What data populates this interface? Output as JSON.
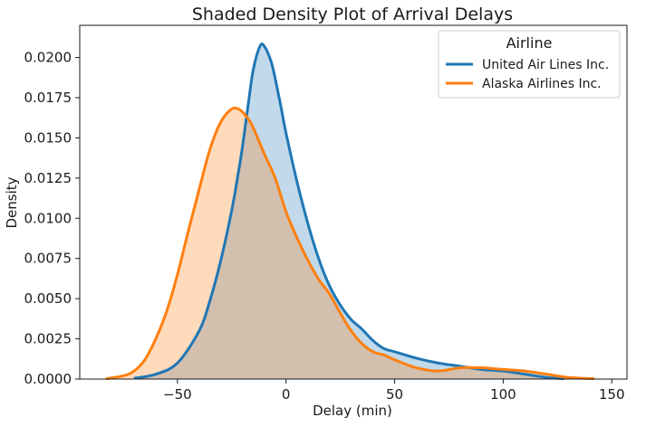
{
  "chart_data": {
    "type": "area",
    "title": "Shaded Density Plot of Arrival Delays",
    "xlabel": "Delay (min)",
    "ylabel": "Density",
    "xlim": [
      -95,
      157
    ],
    "ylim": [
      0,
      0.022
    ],
    "xticks": [
      -50,
      0,
      50,
      100,
      150
    ],
    "xtick_labels": [
      "−50",
      "0",
      "50",
      "100",
      "150"
    ],
    "yticks": [
      0,
      0.0025,
      0.005,
      0.0075,
      0.01,
      0.0125,
      0.015,
      0.0175,
      0.02
    ],
    "ytick_labels": [
      "0.0000",
      "0.0025",
      "0.0050",
      "0.0075",
      "0.0100",
      "0.0125",
      "0.0150",
      "0.0175",
      "0.0200"
    ],
    "grid": false,
    "legend": {
      "title": "Airline",
      "placement": "top-right"
    },
    "series": [
      {
        "name": "United Air Lines Inc.",
        "color": "#1f77b4",
        "x": [
          -70,
          -60,
          -50,
          -40,
          -35,
          -30,
          -25,
          -22,
          -20,
          -17,
          -15,
          -12,
          -10,
          -7,
          -5,
          -2,
          0,
          5,
          10,
          15,
          20,
          25,
          30,
          35,
          40,
          45,
          50,
          60,
          70,
          80,
          90,
          100,
          110,
          120,
          128
        ],
        "y": [
          5e-05,
          0.0003,
          0.001,
          0.003,
          0.0049,
          0.0074,
          0.0105,
          0.0128,
          0.0145,
          0.0175,
          0.0193,
          0.0207,
          0.0207,
          0.0198,
          0.0187,
          0.0167,
          0.0153,
          0.0123,
          0.0097,
          0.0075,
          0.0058,
          0.0046,
          0.0037,
          0.0031,
          0.0024,
          0.0019,
          0.0017,
          0.0013,
          0.001,
          0.0008,
          0.0006,
          0.0005,
          0.0003,
          0.0001,
          2e-05
        ]
      },
      {
        "name": "Alaska Airlines Inc.",
        "color": "#ff7f0e",
        "x": [
          -83,
          -75,
          -70,
          -65,
          -60,
          -55,
          -50,
          -45,
          -40,
          -35,
          -30,
          -25,
          -22,
          -20,
          -17,
          -15,
          -10,
          -5,
          0,
          5,
          10,
          15,
          20,
          25,
          30,
          35,
          40,
          45,
          50,
          60,
          70,
          80,
          90,
          100,
          110,
          120,
          130,
          142
        ],
        "y": [
          2e-05,
          0.0002,
          0.0005,
          0.0012,
          0.0025,
          0.0042,
          0.0065,
          0.0092,
          0.0118,
          0.0143,
          0.016,
          0.0168,
          0.0168,
          0.0166,
          0.0161,
          0.0156,
          0.014,
          0.0125,
          0.0104,
          0.0088,
          0.0074,
          0.0062,
          0.0053,
          0.0041,
          0.003,
          0.0022,
          0.0017,
          0.0015,
          0.0012,
          0.0007,
          0.0005,
          0.0007,
          0.0007,
          0.0006,
          0.0005,
          0.0003,
          0.0001,
          2e-05
        ]
      }
    ]
  }
}
